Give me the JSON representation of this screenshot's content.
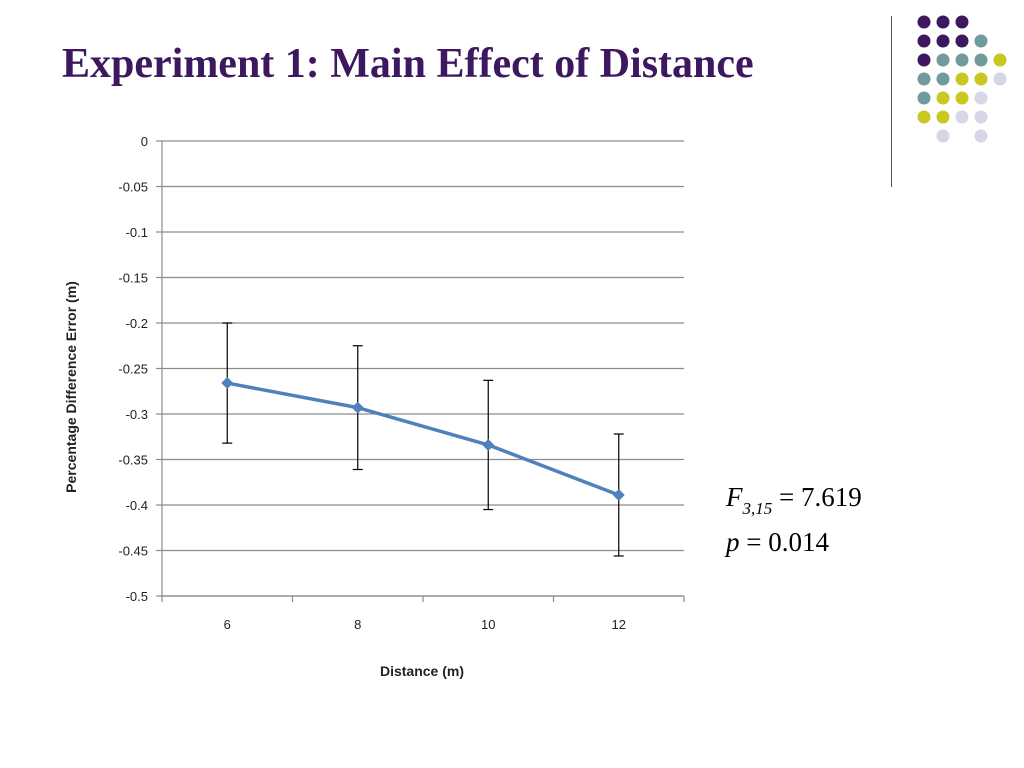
{
  "slide": {
    "title": "Experiment 1: Main Effect of Distance"
  },
  "colors": {
    "title": "#3d1760",
    "series_line": "#4f81bd",
    "decor_dots": [
      "#3d1760",
      "#6f9b9b",
      "#c9c820",
      "#d6d6e6"
    ]
  },
  "decor": {
    "dot_rows": [
      [
        "",
        "purple",
        "purple",
        "purple",
        "",
        ""
      ],
      [
        "",
        "purple",
        "purple",
        "purple",
        "teal",
        ""
      ],
      [
        "",
        "purple",
        "teal",
        "teal",
        "teal",
        "lime"
      ],
      [
        "",
        "teal",
        "teal",
        "lime",
        "lime",
        "lavender"
      ],
      [
        "",
        "teal",
        "lime",
        "lime",
        "lavender",
        ""
      ],
      [
        "",
        "lime",
        "lime",
        "lavender",
        "lavender",
        ""
      ],
      [
        "",
        "",
        "lavender",
        "",
        "lavender",
        ""
      ]
    ]
  },
  "chart_data": {
    "type": "line",
    "title": "",
    "xlabel": "Distance (m)",
    "ylabel": "Percentage Difference Error (m)",
    "categories": [
      "6",
      "8",
      "10",
      "12"
    ],
    "series": [
      {
        "values": [
          -0.266,
          -0.293,
          -0.334,
          -0.389
        ],
        "error": [
          0.066,
          0.068,
          0.071,
          0.067
        ]
      }
    ],
    "ylim": [
      -0.5,
      0
    ],
    "yticks": [
      "0",
      "-0.05",
      "-0.1",
      "-0.15",
      "-0.2",
      "-0.25",
      "-0.3",
      "-0.35",
      "-0.4",
      "-0.45",
      "-0.5"
    ],
    "ytick_values": [
      0,
      -0.05,
      -0.1,
      -0.15,
      -0.2,
      -0.25,
      -0.3,
      -0.35,
      -0.4,
      -0.45,
      -0.5
    ],
    "grid": true,
    "legend": "none",
    "marker": "diamond"
  },
  "stats": {
    "f_symbol": "F",
    "f_subscript": "3,15",
    "f_equals": " = 7.619",
    "p_symbol": "p",
    "p_equals": " = 0.014"
  }
}
